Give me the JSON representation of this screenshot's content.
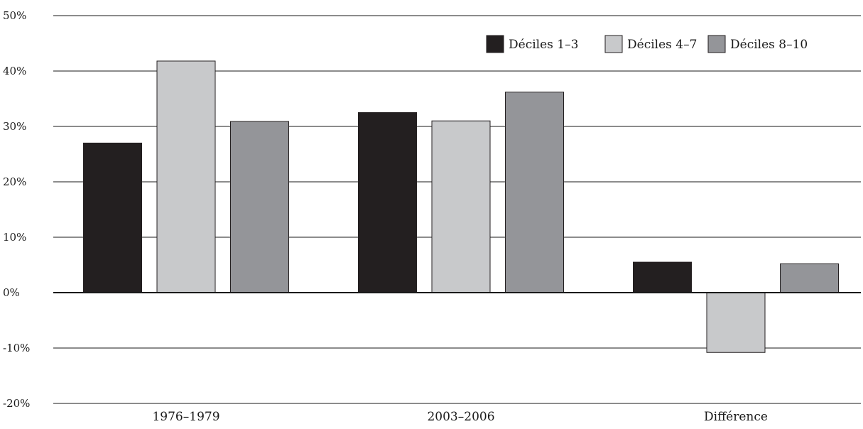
{
  "chart_data": {
    "type": "bar",
    "title": "",
    "xlabel": "",
    "ylabel": "",
    "categories": [
      "1976–1979",
      "2003–2006",
      "Différence"
    ],
    "series": [
      {
        "name": "Déciles 1–3",
        "color": "#231f20",
        "values": [
          27.0,
          32.5,
          5.5
        ]
      },
      {
        "name": "Déciles 4–7",
        "color": "#c8c9cb",
        "values": [
          41.8,
          31.0,
          -10.8
        ]
      },
      {
        "name": "Déciles 8–10",
        "color": "#949599",
        "values": [
          30.9,
          36.2,
          5.2
        ]
      }
    ],
    "ylim": [
      -20,
      50
    ],
    "yticks": [
      -20,
      -10,
      0,
      10,
      20,
      30,
      40,
      50
    ],
    "ytick_labels": [
      "-20%",
      "-10%",
      "0%",
      "10%",
      "20%",
      "30%",
      "40%",
      "50%"
    ],
    "grid": "horizontal",
    "legend_position": "top-right"
  }
}
